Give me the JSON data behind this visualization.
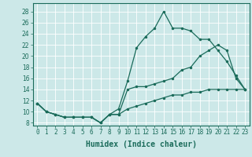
{
  "xlabel": "Humidex (Indice chaleur)",
  "bg_color": "#cce8e8",
  "line_color": "#1a6b5a",
  "grid_color": "#ffffff",
  "xlim": [
    -0.5,
    23.5
  ],
  "ylim": [
    7.5,
    29.5
  ],
  "xticks": [
    0,
    1,
    2,
    3,
    4,
    5,
    6,
    7,
    8,
    9,
    10,
    11,
    12,
    13,
    14,
    15,
    16,
    17,
    18,
    19,
    20,
    21,
    22,
    23
  ],
  "yticks": [
    8,
    10,
    12,
    14,
    16,
    18,
    20,
    22,
    24,
    26,
    28
  ],
  "line1_x": [
    0,
    1,
    2,
    3,
    4,
    5,
    6,
    7,
    8,
    9,
    10,
    11,
    12,
    13,
    14,
    15,
    16,
    17,
    18,
    19,
    20,
    21,
    22,
    23
  ],
  "line1_y": [
    11.5,
    10,
    9.5,
    9,
    9,
    9,
    9,
    8,
    9.5,
    10.5,
    15.5,
    21.5,
    23.5,
    25,
    28,
    25,
    25,
    24.5,
    23,
    23,
    21,
    19,
    16.5,
    14
  ],
  "line2_x": [
    0,
    1,
    2,
    3,
    4,
    5,
    6,
    7,
    8,
    9,
    10,
    11,
    12,
    13,
    14,
    15,
    16,
    17,
    18,
    19,
    20,
    21,
    22,
    23
  ],
  "line2_y": [
    11.5,
    10,
    9.5,
    9,
    9,
    9,
    9,
    8,
    9.5,
    9.5,
    14,
    14.5,
    14.5,
    15,
    15.5,
    16,
    17.5,
    18,
    20,
    21,
    22,
    21,
    16,
    14
  ],
  "line3_x": [
    0,
    1,
    2,
    3,
    4,
    5,
    6,
    7,
    8,
    9,
    10,
    11,
    12,
    13,
    14,
    15,
    16,
    17,
    18,
    19,
    20,
    21,
    22,
    23
  ],
  "line3_y": [
    11.5,
    10,
    9.5,
    9,
    9,
    9,
    9,
    8,
    9.5,
    9.5,
    10.5,
    11,
    11.5,
    12,
    12.5,
    13,
    13,
    13.5,
    13.5,
    14,
    14,
    14,
    14,
    14
  ],
  "tick_fontsize": 5.5,
  "xlabel_fontsize": 7,
  "marker_size": 2.5,
  "line_width": 0.9
}
